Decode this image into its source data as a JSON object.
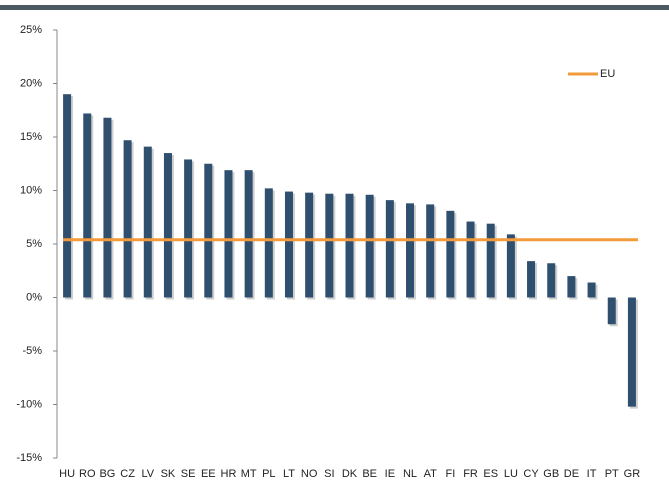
{
  "chart_data": {
    "type": "bar",
    "categories": [
      "HU",
      "RO",
      "BG",
      "CZ",
      "LV",
      "SK",
      "SE",
      "EE",
      "HR",
      "MT",
      "PL",
      "LT",
      "NO",
      "SI",
      "DK",
      "BE",
      "IE",
      "NL",
      "AT",
      "FI",
      "FR",
      "ES",
      "LU",
      "CY",
      "GB",
      "DE",
      "IT",
      "PT",
      "GR"
    ],
    "values": [
      19.0,
      17.2,
      16.8,
      14.7,
      14.1,
      13.5,
      12.9,
      12.5,
      11.9,
      11.9,
      10.2,
      9.9,
      9.8,
      9.7,
      9.7,
      9.6,
      9.1,
      8.8,
      8.7,
      8.1,
      7.1,
      6.9,
      5.9,
      3.4,
      3.2,
      2.0,
      1.4,
      -2.5,
      -10.2
    ],
    "color": "#2f4f6e",
    "reference_line": {
      "name": "EU",
      "value": 5.4,
      "color": "#f39a3a"
    },
    "ylim": [
      -15,
      25
    ],
    "yticks": [
      {
        "value": -15,
        "label": "-15%"
      },
      {
        "value": -10,
        "label": "-10%"
      },
      {
        "value": -5,
        "label": "-5%"
      },
      {
        "value": 0,
        "label": "0%"
      },
      {
        "value": 5,
        "label": "5%"
      },
      {
        "value": 10,
        "label": "10%"
      },
      {
        "value": 15,
        "label": "15%"
      },
      {
        "value": 20,
        "label": "20%"
      },
      {
        "value": 25,
        "label": "25%"
      }
    ],
    "legend": "upper right",
    "grid": false
  }
}
